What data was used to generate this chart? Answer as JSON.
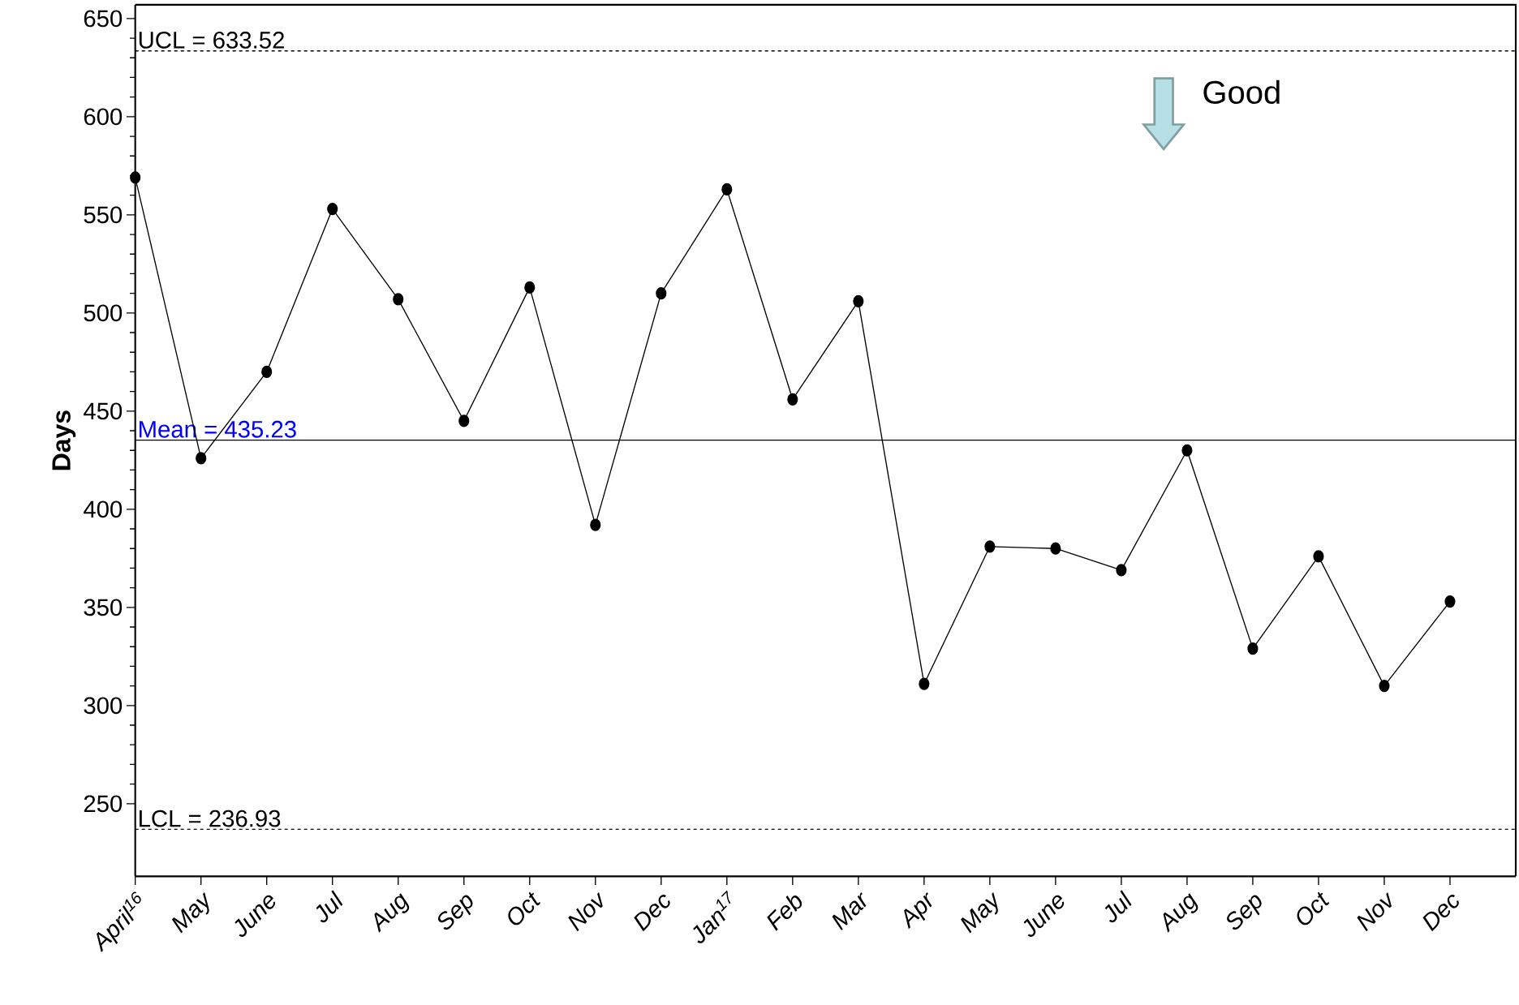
{
  "chart_data": {
    "type": "line",
    "ylabel": "Days",
    "categories": [
      "April$^{16}$",
      "May",
      "June",
      "Jul",
      "Aug",
      "Sep",
      "Oct",
      "Nov",
      "Dec",
      "Jan$^{17}$",
      "Feb",
      "Mar",
      "Apr",
      "May",
      "June",
      "Jul",
      "Aug",
      "Sep",
      "Oct",
      "Nov",
      "Dec"
    ],
    "values": [
      569,
      426,
      470,
      553,
      507,
      445,
      513,
      392,
      510,
      563,
      456,
      506,
      311,
      381,
      380,
      369,
      430,
      329,
      376,
      310,
      353
    ],
    "color": "#000000",
    "marker": "circle",
    "line_style": "solid",
    "ylim": [
      213,
      657
    ],
    "yticks": [
      250,
      300,
      350,
      400,
      450,
      500,
      550,
      600,
      650
    ],
    "ref_lines": [
      {
        "axis": "y",
        "value": 633.52,
        "label": "UCL = 633.52",
        "line_style": "dashed",
        "color": "#000000"
      },
      {
        "axis": "y",
        "value": 435.23,
        "label": "Mean = 435.23",
        "line_style": "solid",
        "color": "#000000"
      },
      {
        "axis": "y",
        "value": 236.93,
        "label": "LCL = 236.93",
        "line_style": "dashed",
        "color": "#000000"
      }
    ],
    "annotations": [
      "Good"
    ]
  }
}
